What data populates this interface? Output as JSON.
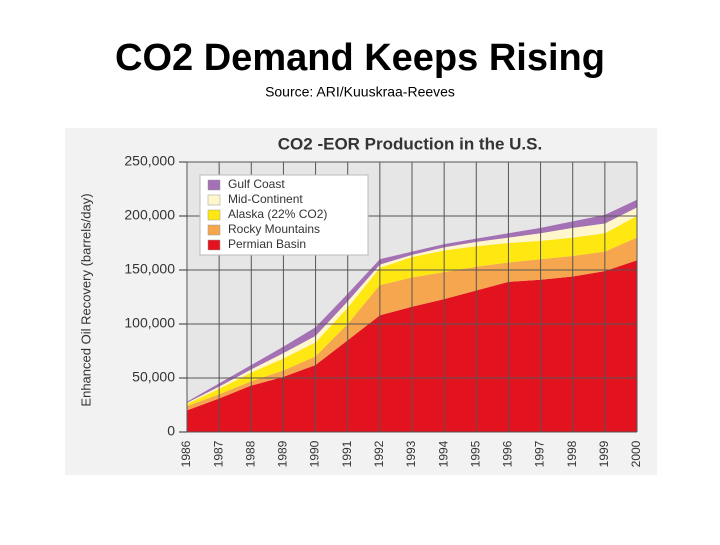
{
  "slide": {
    "title": "CO2 Demand Keeps Rising",
    "source": "Source: ARI/Kuuskraa-Reeves"
  },
  "chart_data": {
    "type": "stacked-area",
    "title": "CO2 -EOR Production in the U.S.",
    "y_label": "Enhanced Oil Recovery (barrels/day)",
    "x": [
      1986,
      1987,
      1988,
      1989,
      1990,
      1991,
      1992,
      1993,
      1994,
      1995,
      1996,
      1997,
      1998,
      1999,
      2000
    ],
    "xlim": [
      1986,
      2000
    ],
    "xticks": [
      1986,
      1987,
      1988,
      1989,
      1990,
      1991,
      1992,
      1993,
      1994,
      1995,
      1996,
      1997,
      1998,
      1999,
      2000
    ],
    "ylim": [
      0,
      250000
    ],
    "yticks": [
      0,
      {
        "value": 50000,
        "label": "50,000"
      },
      {
        "value": 100000,
        "label": "100,000"
      },
      {
        "value": 150000,
        "label": "150,000"
      },
      {
        "value": 200000,
        "label": "200,000"
      },
      {
        "value": 250000,
        "label": "250,000"
      }
    ],
    "grid": true,
    "legend": "upper-left",
    "series": [
      {
        "name": "Gulf Coast",
        "color": "#a371b4",
        "values": [
          1000,
          3000,
          4000,
          6000,
          8000,
          7000,
          5000,
          3000,
          3000,
          3000,
          4000,
          5000,
          6000,
          8000,
          7000
        ]
      },
      {
        "name": "Mid-Continent",
        "color": "#fff6cc",
        "values": [
          1000,
          2000,
          3000,
          5000,
          6000,
          6000,
          3000,
          2000,
          3000,
          4000,
          5000,
          7000,
          9000,
          9000,
          8000
        ]
      },
      {
        "name": "Alaska (22% CO2)",
        "color": "#ffe812",
        "values": [
          2000,
          5000,
          8000,
          11000,
          13000,
          15000,
          16000,
          19000,
          20000,
          19000,
          18000,
          17000,
          17000,
          17000,
          20000
        ]
      },
      {
        "name": "Rocky Mountains",
        "color": "#f5a64e",
        "values": [
          4000,
          4000,
          4000,
          6000,
          8000,
          15000,
          28000,
          27000,
          25000,
          22000,
          18000,
          19000,
          19000,
          18000,
          21000
        ]
      },
      {
        "name": "Permian Basin",
        "color": "#e3121f",
        "values": [
          20000,
          31000,
          43000,
          51000,
          62000,
          85000,
          108000,
          116000,
          123000,
          131000,
          139000,
          141000,
          144000,
          149000,
          159000
        ]
      }
    ]
  }
}
